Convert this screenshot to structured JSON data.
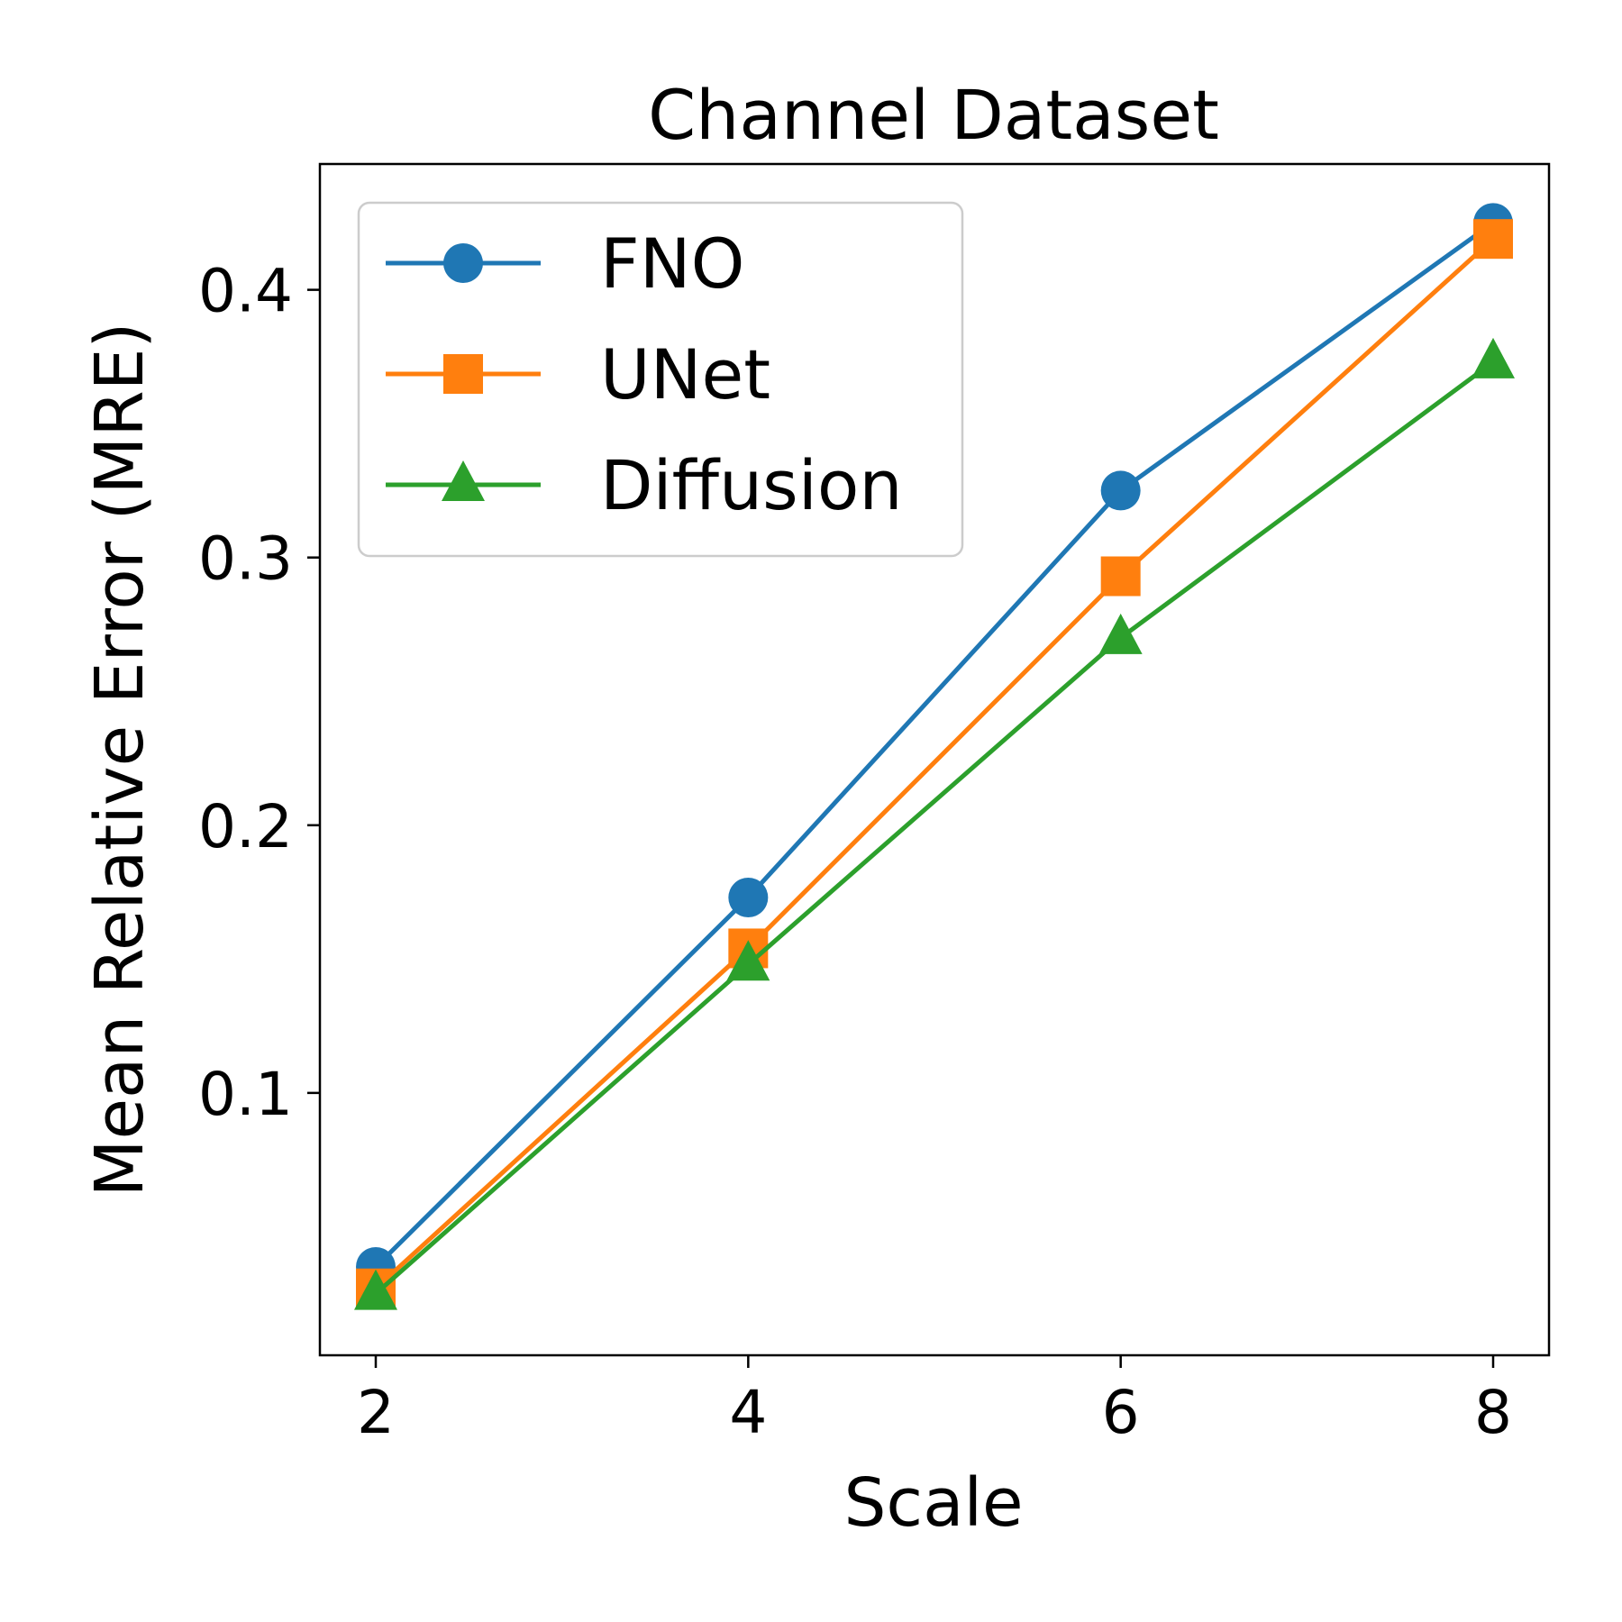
{
  "chart_data": {
    "type": "line",
    "title": "Channel Dataset",
    "xlabel": "Scale",
    "ylabel": "Mean Relative Error (MRE)",
    "x": [
      2,
      4,
      6,
      8
    ],
    "xticks": [
      "2",
      "4",
      "6",
      "8"
    ],
    "yticks": [
      "0.1",
      "0.2",
      "0.3",
      "0.4"
    ],
    "ytick_values": [
      0.1,
      0.2,
      0.3,
      0.4
    ],
    "xlim": [
      1.7,
      8.3
    ],
    "ylim": [
      0.002,
      0.447
    ],
    "grid": false,
    "legend_position": "upper-left",
    "series": [
      {
        "name": "FNO",
        "marker": "circle",
        "color": "#1f77b4",
        "values": [
          0.035,
          0.173,
          0.325,
          0.425
        ]
      },
      {
        "name": "UNet",
        "marker": "square",
        "color": "#ff7f0e",
        "values": [
          0.027,
          0.154,
          0.293,
          0.419
        ]
      },
      {
        "name": "Diffusion",
        "marker": "triangle",
        "color": "#2ca02c",
        "values": [
          0.025,
          0.148,
          0.27,
          0.373
        ]
      }
    ]
  }
}
